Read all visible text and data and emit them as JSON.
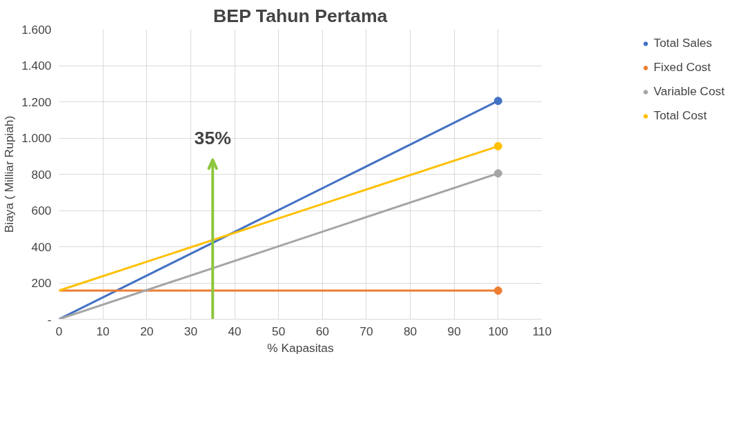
{
  "chart_data": {
    "type": "line",
    "title": "BEP Tahun Pertama",
    "xlabel": "% Kapasitas",
    "ylabel": "Biaya ( Milliar Rupiah)",
    "x": [
      0,
      100
    ],
    "series": [
      {
        "name": "Total Sales",
        "color": "#4472c4",
        "values": [
          0,
          1205
        ]
      },
      {
        "name": "Fixed Cost",
        "color": "#ed7d31",
        "values": [
          158,
          158
        ]
      },
      {
        "name": "Variable Cost",
        "color": "#a5a5a5",
        "values": [
          0,
          805
        ]
      },
      {
        "name": "Total Cost",
        "color": "#ffc000",
        "values": [
          158,
          955
        ]
      }
    ],
    "xlim": [
      0,
      110
    ],
    "xticks": [
      0,
      10,
      20,
      30,
      40,
      50,
      60,
      70,
      80,
      90,
      100,
      110
    ],
    "ylim": [
      0,
      1600
    ],
    "yticks": [
      {
        "value": 0,
        "label": "-"
      },
      {
        "value": 200,
        "label": "200"
      },
      {
        "value": 400,
        "label": "400"
      },
      {
        "value": 600,
        "label": "600"
      },
      {
        "value": 800,
        "label": "800"
      },
      {
        "value": 1000,
        "label": "1.000"
      },
      {
        "value": 1200,
        "label": "1.200"
      },
      {
        "value": 1400,
        "label": "1.400"
      },
      {
        "value": 1600,
        "label": "1.600"
      }
    ],
    "ref_lines": [
      {
        "axis": "x",
        "value": 35,
        "label": "35%",
        "color": "#8dc63f"
      }
    ],
    "grid": true,
    "legend": "right",
    "marker": "circle",
    "line_style": "solid"
  }
}
